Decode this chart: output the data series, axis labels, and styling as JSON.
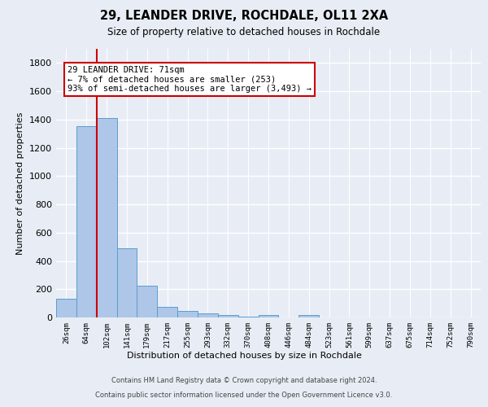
{
  "title_line1": "29, LEANDER DRIVE, ROCHDALE, OL11 2XA",
  "title_line2": "Size of property relative to detached houses in Rochdale",
  "xlabel": "Distribution of detached houses by size in Rochdale",
  "ylabel": "Number of detached properties",
  "bar_labels": [
    "26sqm",
    "64sqm",
    "102sqm",
    "141sqm",
    "179sqm",
    "217sqm",
    "255sqm",
    "293sqm",
    "332sqm",
    "370sqm",
    "408sqm",
    "446sqm",
    "484sqm",
    "523sqm",
    "561sqm",
    "599sqm",
    "637sqm",
    "675sqm",
    "714sqm",
    "752sqm",
    "790sqm"
  ],
  "bar_values": [
    135,
    1355,
    1410,
    490,
    225,
    75,
    45,
    28,
    18,
    5,
    20,
    0,
    15,
    0,
    0,
    0,
    0,
    0,
    0,
    0,
    0
  ],
  "bar_color": "#aec6e8",
  "bar_edge_color": "#5a9ecf",
  "ylim": [
    0,
    1900
  ],
  "yticks": [
    0,
    200,
    400,
    600,
    800,
    1000,
    1200,
    1400,
    1600,
    1800
  ],
  "annotation_text": "29 LEANDER DRIVE: 71sqm\n← 7% of detached houses are smaller (253)\n93% of semi-detached houses are larger (3,493) →",
  "annotation_box_color": "#ffffff",
  "annotation_box_edgecolor": "#cc0000",
  "vline_color": "#cc0000",
  "footer_line1": "Contains HM Land Registry data © Crown copyright and database right 2024.",
  "footer_line2": "Contains public sector information licensed under the Open Government Licence v3.0.",
  "bg_color": "#e8edf5",
  "plot_bg_color": "#e8edf5",
  "grid_color": "#ffffff"
}
